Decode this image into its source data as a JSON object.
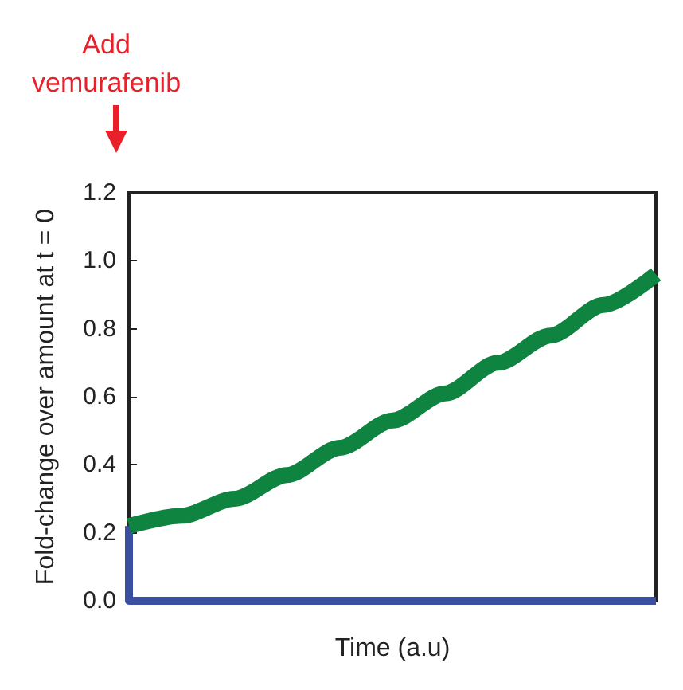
{
  "chart_data": {
    "type": "line",
    "xlabel": "Time (a.u)",
    "ylabel": "Fold-change over amount at t = 0",
    "annotations": [
      "Add\nvemurafenib"
    ],
    "categories": [
      null,
      null,
      null,
      null,
      null,
      null,
      null,
      null,
      null,
      null,
      null
    ],
    "series": [
      {
        "color": "#0f8340",
        "values": [
          0.22,
          0.25,
          0.3,
          0.37,
          0.45,
          0.53,
          0.61,
          0.7,
          0.78,
          0.87,
          0.96
        ]
      },
      {
        "type": "step",
        "color": "#3a4fa0",
        "values": [
          0.22,
          0,
          0,
          0,
          0,
          0,
          0,
          0,
          0,
          0,
          0
        ]
      }
    ],
    "ylim": [
      0,
      1.2
    ],
    "yticks": [
      {
        "value": 0,
        "label": "0.0"
      },
      0.2,
      0.4,
      0.6,
      0.8,
      {
        "value": 1,
        "label": "1.0"
      },
      1.2
    ],
    "grid": false,
    "marker": "none",
    "line_style": "solid"
  }
}
